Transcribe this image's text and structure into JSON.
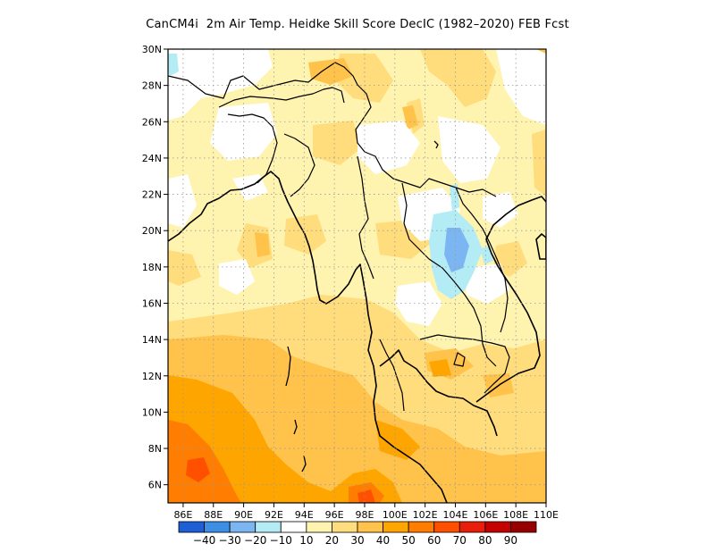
{
  "title": "CanCM4i  2m Air Temp. Heidke Skill Score DecIC (1982–2020) FEB Fcst",
  "map": {
    "lon_range": [
      85.0,
      110.0
    ],
    "lat_range": [
      5.0,
      30.0
    ],
    "grid": "dotted",
    "lat_ticks": [
      {
        "value": 30,
        "label": "30N"
      },
      {
        "value": 28,
        "label": "28N"
      },
      {
        "value": 26,
        "label": "26N"
      },
      {
        "value": 24,
        "label": "24N"
      },
      {
        "value": 22,
        "label": "22N"
      },
      {
        "value": 20,
        "label": "20N"
      },
      {
        "value": 18,
        "label": "18N"
      },
      {
        "value": 16,
        "label": "16N"
      },
      {
        "value": 14,
        "label": "14N"
      },
      {
        "value": 12,
        "label": "12N"
      },
      {
        "value": 10,
        "label": "10N"
      },
      {
        "value": 8,
        "label": "8N"
      },
      {
        "value": 6,
        "label": "6N"
      }
    ],
    "lon_ticks": [
      {
        "value": 86,
        "label": "86E"
      },
      {
        "value": 88,
        "label": "88E"
      },
      {
        "value": 90,
        "label": "90E"
      },
      {
        "value": 92,
        "label": "92E"
      },
      {
        "value": 94,
        "label": "94E"
      },
      {
        "value": 96,
        "label": "96E"
      },
      {
        "value": 98,
        "label": "98E"
      },
      {
        "value": 100,
        "label": "100E"
      },
      {
        "value": 102,
        "label": "102E"
      },
      {
        "value": 104,
        "label": "104E"
      },
      {
        "value": 106,
        "label": "106E"
      },
      {
        "value": 108,
        "label": "108E"
      },
      {
        "value": 110,
        "label": "110E"
      }
    ]
  },
  "colorbar": {
    "colors": [
      "#1f5fd6",
      "#3d8fe6",
      "#7cb6f2",
      "#b4ecf6",
      "#ffffff",
      "#fff3b0",
      "#ffdc7c",
      "#ffc24a",
      "#ffa500",
      "#ff7d00",
      "#ff5000",
      "#e81e0a",
      "#c40000",
      "#960000"
    ],
    "labels": [
      "−40",
      "−30",
      "−20",
      "−10",
      "10",
      "20",
      "30",
      "40",
      "50",
      "60",
      "70",
      "80",
      "90"
    ]
  }
}
